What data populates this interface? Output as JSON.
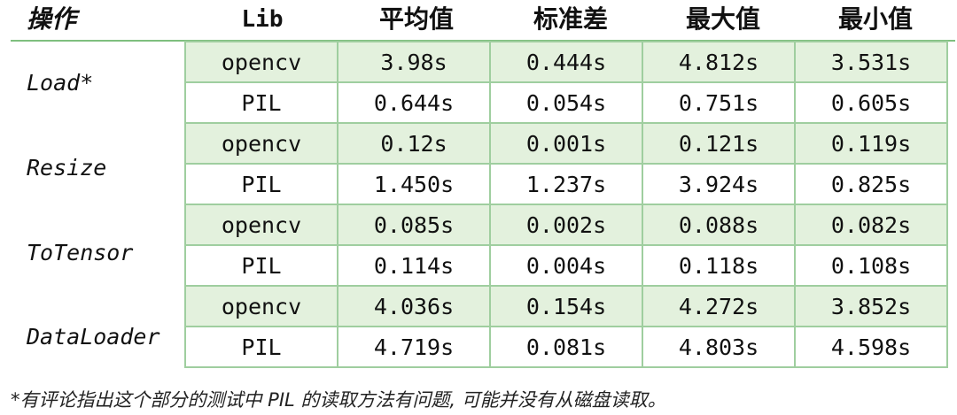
{
  "headers": [
    "操作",
    "Lib",
    "平均值",
    "标准差",
    "最大值",
    "最小值"
  ],
  "groups": [
    {
      "op": "Load*",
      "rows": [
        {
          "lib": "opencv",
          "vals": [
            "3.98s",
            "0.444s",
            "4.812s",
            "3.531s"
          ]
        },
        {
          "lib": "PIL",
          "vals": [
            "0.644s",
            "0.054s",
            "0.751s",
            "0.605s"
          ]
        }
      ]
    },
    {
      "op": "Resize",
      "rows": [
        {
          "lib": "opencv",
          "vals": [
            "0.12s",
            "0.001s",
            "0.121s",
            "0.119s"
          ]
        },
        {
          "lib": "PIL",
          "vals": [
            "1.450s",
            "1.237s",
            "3.924s",
            "0.825s"
          ]
        }
      ]
    },
    {
      "op": "ToTensor",
      "rows": [
        {
          "lib": "opencv",
          "vals": [
            "0.085s",
            "0.002s",
            "0.088s",
            "0.082s"
          ]
        },
        {
          "lib": "PIL",
          "vals": [
            "0.114s",
            "0.004s",
            "0.118s",
            "0.108s"
          ]
        }
      ]
    },
    {
      "op": "DataLoader",
      "rows": [
        {
          "lib": "opencv",
          "vals": [
            "4.036s",
            "0.154s",
            "4.272s",
            "3.852s"
          ]
        },
        {
          "lib": "PIL",
          "vals": [
            "4.719s",
            "0.081s",
            "4.803s",
            "4.598s"
          ]
        }
      ]
    }
  ],
  "footnote": "*有评论指出这个部分的测试中 PIL 的读取方法有问题, 可能并没有从磁盘读取。",
  "colors": {
    "shaded_row": "#e3f1dd",
    "border": "#9fce9f",
    "rule": "#7fbf7f"
  }
}
